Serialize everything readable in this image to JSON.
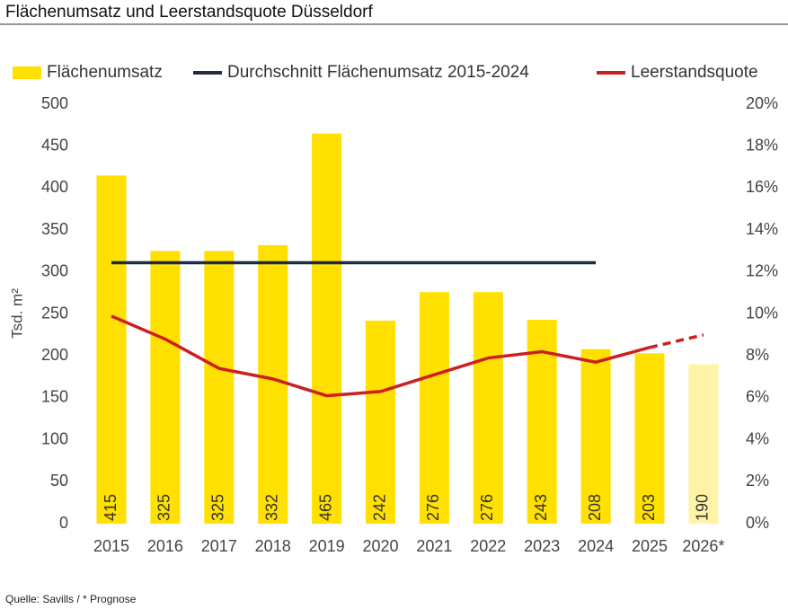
{
  "chart_data": {
    "type": "bar",
    "title": "Flächenumsatz und Leerstandsquote Düsseldorf",
    "y_label": "Tsd. m²",
    "source": "Quelle: Savills / * Prognose",
    "categories": [
      "2015",
      "2016",
      "2017",
      "2018",
      "2019",
      "2020",
      "2021",
      "2022",
      "2023",
      "2024",
      "2025",
      "2026*"
    ],
    "forecast_categories": [
      "2026*"
    ],
    "series": [
      {
        "name": "Flächenumsatz",
        "type": "bar",
        "color": "#ffe000",
        "forecast_color": "#fff3a8",
        "values": [
          415,
          325,
          325,
          332,
          465,
          242,
          276,
          276,
          243,
          208,
          203,
          190
        ]
      },
      {
        "name": "Durchschnitt Flächenumsatz 2015-2024",
        "type": "line",
        "color": "#1f2a44",
        "values": [
          311,
          311,
          311,
          311,
          311,
          311,
          311,
          311,
          311,
          311,
          null,
          null
        ]
      },
      {
        "name": "Leerstandsquote",
        "type": "line",
        "color": "#cc1f1f",
        "axis": "y2",
        "values": [
          9.9,
          8.8,
          7.4,
          6.9,
          6.1,
          6.3,
          7.1,
          7.9,
          8.2,
          7.7,
          8.4,
          9.0
        ]
      }
    ],
    "ylim": [
      0,
      500
    ],
    "yticks": [
      0,
      50,
      100,
      150,
      200,
      250,
      300,
      350,
      400,
      450,
      500
    ],
    "y2lim": [
      0,
      20
    ],
    "y2ticks": [
      {
        "value": 0,
        "label": "0%"
      },
      {
        "value": 2,
        "label": "2%"
      },
      {
        "value": 4,
        "label": "4%"
      },
      {
        "value": 6,
        "label": "6%"
      },
      {
        "value": 8,
        "label": "8%"
      },
      {
        "value": 10,
        "label": "10%"
      },
      {
        "value": 12,
        "label": "12%"
      },
      {
        "value": 14,
        "label": "14%"
      },
      {
        "value": 16,
        "label": "16%"
      },
      {
        "value": 18,
        "label": "18%"
      },
      {
        "value": 20,
        "label": "20%"
      }
    ],
    "grid": false,
    "legend": "top"
  }
}
